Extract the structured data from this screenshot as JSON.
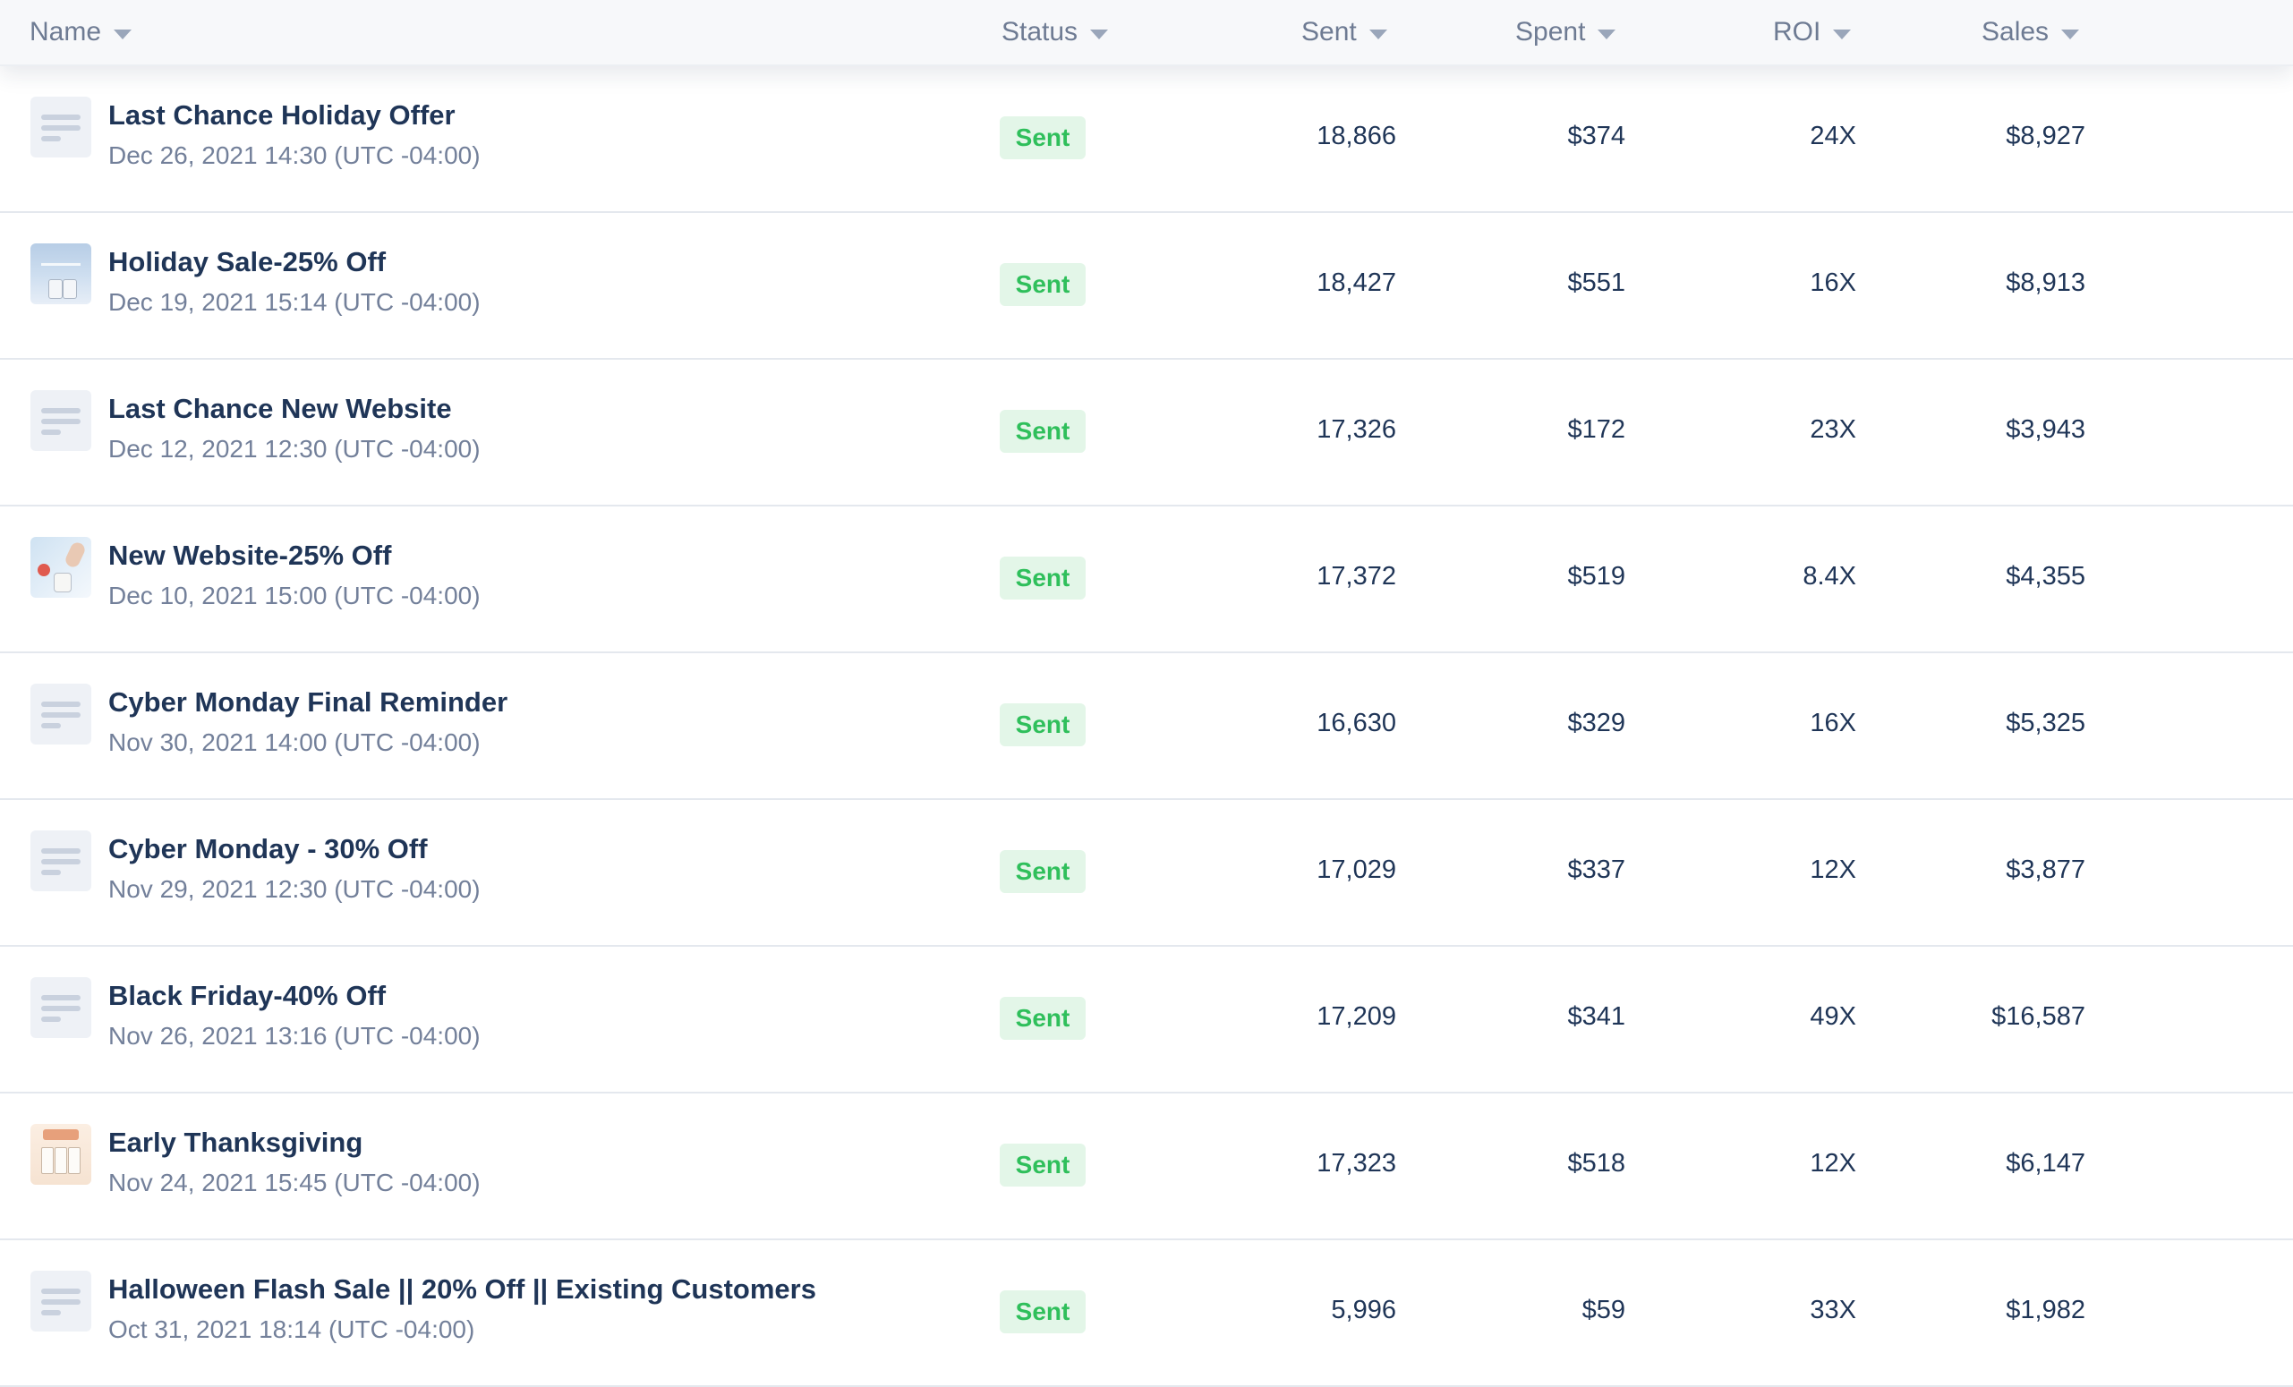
{
  "columns": {
    "name": "Name",
    "status": "Status",
    "sent": "Sent",
    "spent": "Spent",
    "roi": "ROI",
    "sales": "Sales"
  },
  "colors": {
    "title": "#1f3557",
    "muted": "#73809a",
    "badge_bg": "#e3f6e8",
    "badge_text": "#2fbf5b"
  },
  "rows": [
    {
      "thumb": "placeholder-icon",
      "title": "Last Chance Holiday Offer",
      "date": "Dec 26, 2021 14:30 (UTC -04:00)",
      "status": "Sent",
      "sent": "18,866",
      "spent": "$374",
      "roi": "24X",
      "sales": "$8,927"
    },
    {
      "thumb": "holiday-sale-image",
      "title": "Holiday Sale-25% Off",
      "date": "Dec 19, 2021 15:14 (UTC -04:00)",
      "status": "Sent",
      "sent": "18,427",
      "spent": "$551",
      "roi": "16X",
      "sales": "$8,913"
    },
    {
      "thumb": "placeholder-icon",
      "title": "Last Chance New Website",
      "date": "Dec 12, 2021 12:30 (UTC -04:00)",
      "status": "Sent",
      "sent": "17,326",
      "spent": "$172",
      "roi": "23X",
      "sales": "$3,943"
    },
    {
      "thumb": "new-website-image",
      "title": "New Website-25% Off",
      "date": "Dec 10, 2021 15:00 (UTC -04:00)",
      "status": "Sent",
      "sent": "17,372",
      "spent": "$519",
      "roi": "8.4X",
      "sales": "$4,355"
    },
    {
      "thumb": "placeholder-icon",
      "title": "Cyber Monday Final Reminder",
      "date": "Nov 30, 2021 14:00 (UTC -04:00)",
      "status": "Sent",
      "sent": "16,630",
      "spent": "$329",
      "roi": "16X",
      "sales": "$5,325"
    },
    {
      "thumb": "placeholder-icon",
      "title": "Cyber Monday - 30% Off",
      "date": "Nov 29, 2021 12:30 (UTC -04:00)",
      "status": "Sent",
      "sent": "17,029",
      "spent": "$337",
      "roi": "12X",
      "sales": "$3,877"
    },
    {
      "thumb": "placeholder-icon",
      "title": "Black Friday-40% Off",
      "date": "Nov 26, 2021 13:16 (UTC -04:00)",
      "status": "Sent",
      "sent": "17,209",
      "spent": "$341",
      "roi": "49X",
      "sales": "$16,587"
    },
    {
      "thumb": "thanksgiving-image",
      "title": "Early Thanksgiving",
      "date": "Nov 24, 2021 15:45 (UTC -04:00)",
      "status": "Sent",
      "sent": "17,323",
      "spent": "$518",
      "roi": "12X",
      "sales": "$6,147"
    },
    {
      "thumb": "placeholder-icon",
      "title": "Halloween Flash Sale || 20% Off || Existing Customers",
      "date": "Oct 31, 2021 18:14 (UTC -04:00)",
      "status": "Sent",
      "sent": "5,996",
      "spent": "$59",
      "roi": "33X",
      "sales": "$1,982"
    }
  ]
}
